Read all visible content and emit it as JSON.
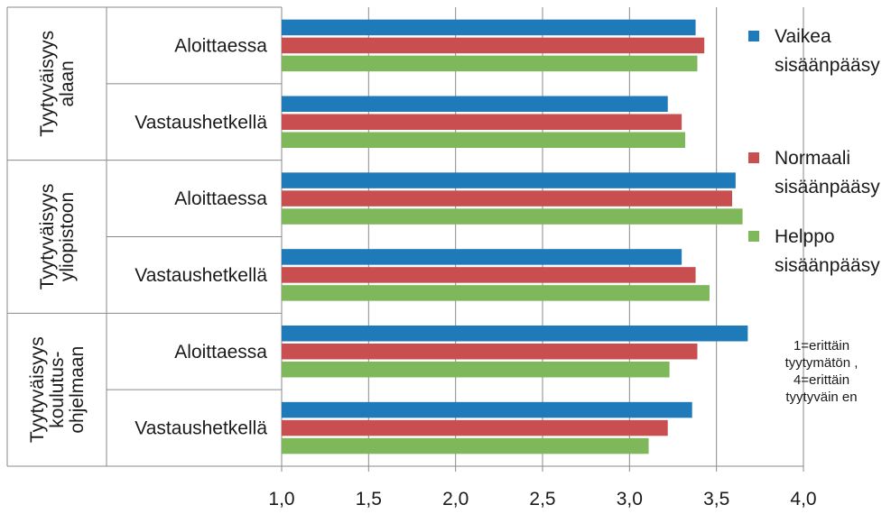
{
  "chart_data": {
    "type": "bar",
    "orientation": "horizontal",
    "groups": [
      {
        "label_lines": [
          "Tyytyväisyys",
          "alaan"
        ],
        "categories": [
          {
            "label": "Aloittaessa",
            "values": [
              3.38,
              3.43,
              3.39
            ]
          },
          {
            "label": "Vastaushetkellä",
            "values": [
              3.22,
              3.3,
              3.32
            ]
          }
        ]
      },
      {
        "label_lines": [
          "Tyytyväisyys",
          "yliopistoon"
        ],
        "categories": [
          {
            "label": "Aloittaessa",
            "values": [
              3.61,
              3.59,
              3.65
            ]
          },
          {
            "label": "Vastaushetkellä",
            "values": [
              3.3,
              3.38,
              3.46
            ]
          }
        ]
      },
      {
        "label_lines": [
          "Tyytyväisyys",
          "koulutus-",
          "ohjelmaan"
        ],
        "categories": [
          {
            "label": "Aloittaessa",
            "values": [
              3.68,
              3.39,
              3.23
            ]
          },
          {
            "label": "Vastaushetkellä",
            "values": [
              3.36,
              3.22,
              3.11
            ]
          }
        ]
      }
    ],
    "series": [
      {
        "name_lines": [
          "Vaikea",
          "sisäänpääsy"
        ],
        "color": "#1e7ab8"
      },
      {
        "name_lines": [
          "Normaali",
          "sisäänpääsy"
        ],
        "color": "#c84e50"
      },
      {
        "name_lines": [
          "Helppo",
          "sisäänpääsy"
        ],
        "color": "#7fb85a"
      }
    ],
    "xlim": [
      1.0,
      4.0
    ],
    "x_ticks": [
      "1,0",
      "1,5",
      "2,0",
      "2,5",
      "3,0",
      "3,5",
      "4,0"
    ],
    "x_tick_values": [
      1.0,
      1.5,
      2.0,
      2.5,
      3.0,
      3.5,
      4.0
    ],
    "gridlines": true,
    "legend_position": "right",
    "note_lines": [
      "1=erittäin",
      "tyytymätön ,",
      "4=erittäin",
      "tyytyväin en"
    ]
  }
}
